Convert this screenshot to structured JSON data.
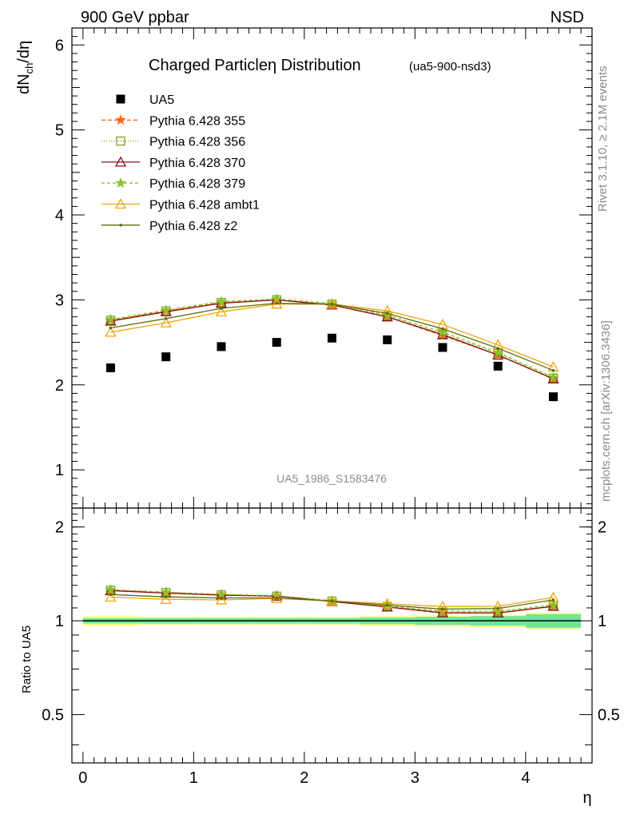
{
  "header": {
    "left": "900 GeV ppbar",
    "right": "NSD"
  },
  "side_labels": {
    "rivet": "Rivet 3.1.10, ≥ 2.1M events",
    "mcplots": "mcplots.cern.ch [arXiv:1306.3436]"
  },
  "chart_data": [
    {
      "type": "scatter",
      "title": "Charged Particleη Distribution",
      "subtitle": "(ua5-900-nsd3)",
      "watermark": "UA5_1986_S1583476",
      "ylabel_main": "dN",
      "ylabel_sub": "ch",
      "ylabel_tail": "/dη",
      "xlabel": "η",
      "xlim": [
        -0.1,
        4.6
      ],
      "ylim": [
        0.55,
        6.2
      ],
      "xticks": [
        "0",
        "1",
        "2",
        "3",
        "4"
      ],
      "yticks": [
        "1",
        "2",
        "3",
        "4",
        "5",
        "6"
      ],
      "x": [
        0.25,
        0.75,
        1.25,
        1.75,
        2.25,
        2.75,
        3.25,
        3.75,
        4.25
      ],
      "data": {
        "name": "UA5",
        "color": "#000000",
        "values": [
          2.2,
          2.33,
          2.45,
          2.5,
          2.55,
          2.53,
          2.44,
          2.22,
          1.86
        ]
      },
      "series": [
        {
          "name": "Pythia 6.428 355",
          "color": "#ff6a1a",
          "dash": "5,3",
          "marker": "star",
          "values": [
            2.76,
            2.87,
            2.97,
            3.0,
            2.94,
            2.8,
            2.58,
            2.35,
            2.07
          ]
        },
        {
          "name": "Pythia 6.428 356",
          "color": "#7aa21e",
          "dash": "1,2",
          "marker": "square",
          "values": [
            2.76,
            2.87,
            2.97,
            3.0,
            2.95,
            2.81,
            2.6,
            2.37,
            2.08
          ]
        },
        {
          "name": "Pythia 6.428 370",
          "color": "#8c0a18",
          "dash": "",
          "marker": "triangle",
          "values": [
            2.75,
            2.86,
            2.96,
            3.0,
            2.94,
            2.8,
            2.59,
            2.35,
            2.07
          ]
        },
        {
          "name": "Pythia 6.428 379",
          "color": "#8bc22a",
          "dash": "4,3",
          "marker": "star",
          "values": [
            2.77,
            2.88,
            2.98,
            3.01,
            2.96,
            2.82,
            2.62,
            2.38,
            2.09
          ]
        },
        {
          "name": "Pythia 6.428 ambt1",
          "color": "#f0a30a",
          "dash": "",
          "marker": "triangle",
          "values": [
            2.62,
            2.73,
            2.86,
            2.95,
            2.95,
            2.87,
            2.71,
            2.47,
            2.21
          ]
        },
        {
          "name": "Pythia 6.428 z2",
          "color": "#5c6e10",
          "dash": "",
          "marker": "dot",
          "values": [
            2.67,
            2.78,
            2.9,
            2.96,
            2.95,
            2.84,
            2.66,
            2.43,
            2.17
          ]
        }
      ]
    },
    {
      "type": "line",
      "ylabel": "Ratio to UA5",
      "xlim": [
        -0.1,
        4.6
      ],
      "ylim": [
        0.35,
        2.3
      ],
      "yticks": [
        "0.5",
        "1",
        "2"
      ],
      "reference": 1,
      "x": [
        0.25,
        0.75,
        1.25,
        1.75,
        2.25,
        2.75,
        3.25,
        3.75,
        4.25
      ],
      "band_x_edges": [
        0,
        0.5,
        1,
        1.5,
        2,
        2.5,
        3,
        3.5,
        4,
        4.5
      ],
      "stat_band": [
        0.02,
        0.02,
        0.02,
        0.02,
        0.02,
        0.025,
        0.03,
        0.035,
        0.05
      ],
      "total_band": [
        0.035,
        0.03,
        0.03,
        0.03,
        0.03,
        0.035,
        0.04,
        0.045,
        0.06
      ],
      "band_colors": {
        "stat": "#6ee69a",
        "total": "#ffff7a"
      },
      "series": [
        {
          "name": "Pythia 6.428 355",
          "values": [
            1.253,
            1.232,
            1.213,
            1.2,
            1.153,
            1.107,
            1.057,
            1.059,
            1.113
          ]
        },
        {
          "name": "Pythia 6.428 356",
          "values": [
            1.254,
            1.232,
            1.212,
            1.2,
            1.157,
            1.111,
            1.066,
            1.068,
            1.118
          ]
        },
        {
          "name": "Pythia 6.428 370",
          "values": [
            1.25,
            1.227,
            1.208,
            1.2,
            1.153,
            1.107,
            1.061,
            1.059,
            1.113
          ]
        },
        {
          "name": "Pythia 6.428 379",
          "values": [
            1.259,
            1.236,
            1.216,
            1.204,
            1.161,
            1.115,
            1.074,
            1.072,
            1.124
          ]
        },
        {
          "name": "Pythia 6.428 ambt1",
          "values": [
            1.191,
            1.172,
            1.167,
            1.18,
            1.157,
            1.134,
            1.111,
            1.113,
            1.188
          ]
        },
        {
          "name": "Pythia 6.428 z2",
          "values": [
            1.214,
            1.193,
            1.184,
            1.184,
            1.157,
            1.123,
            1.09,
            1.095,
            1.167
          ]
        }
      ]
    }
  ]
}
